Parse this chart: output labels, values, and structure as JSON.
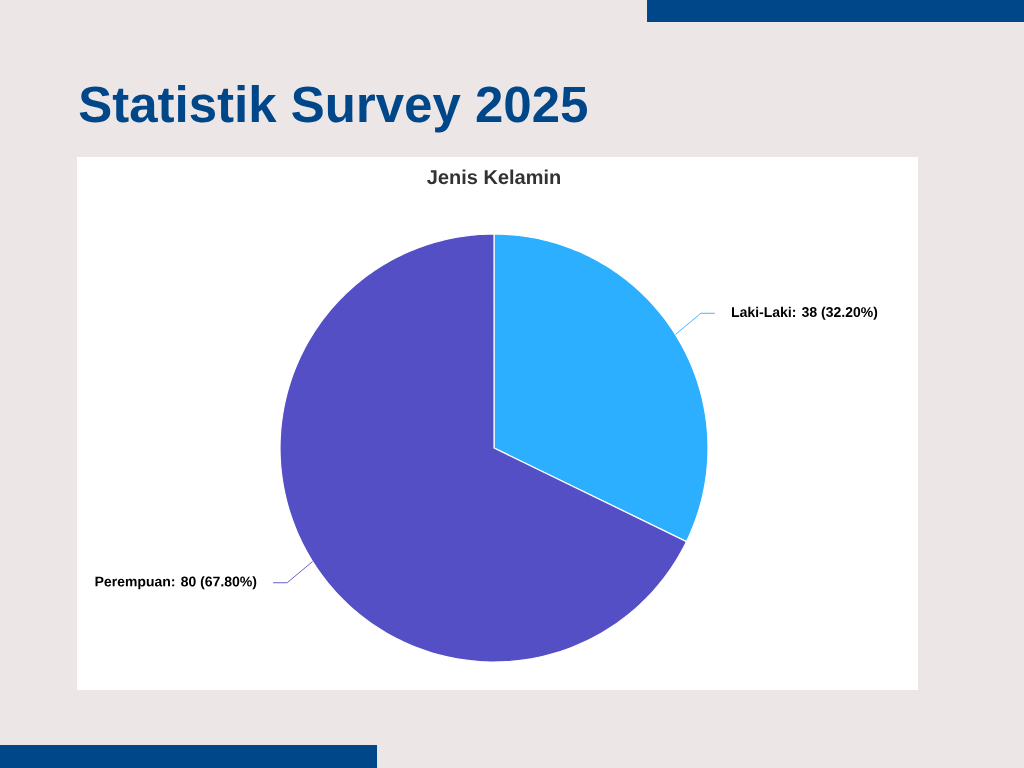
{
  "chart_data": {
    "type": "pie",
    "title": "Statistik Survey 2025",
    "subtitle": "Jenis Kelamin",
    "categories": [
      "Laki-Laki",
      "Perempuan"
    ],
    "values": [
      38,
      80
    ],
    "colors": [
      "#2caffe",
      "#544fc5"
    ],
    "value_labels": [
      ": 38 (32.20%)",
      ": 80 (67.80%)"
    ]
  }
}
